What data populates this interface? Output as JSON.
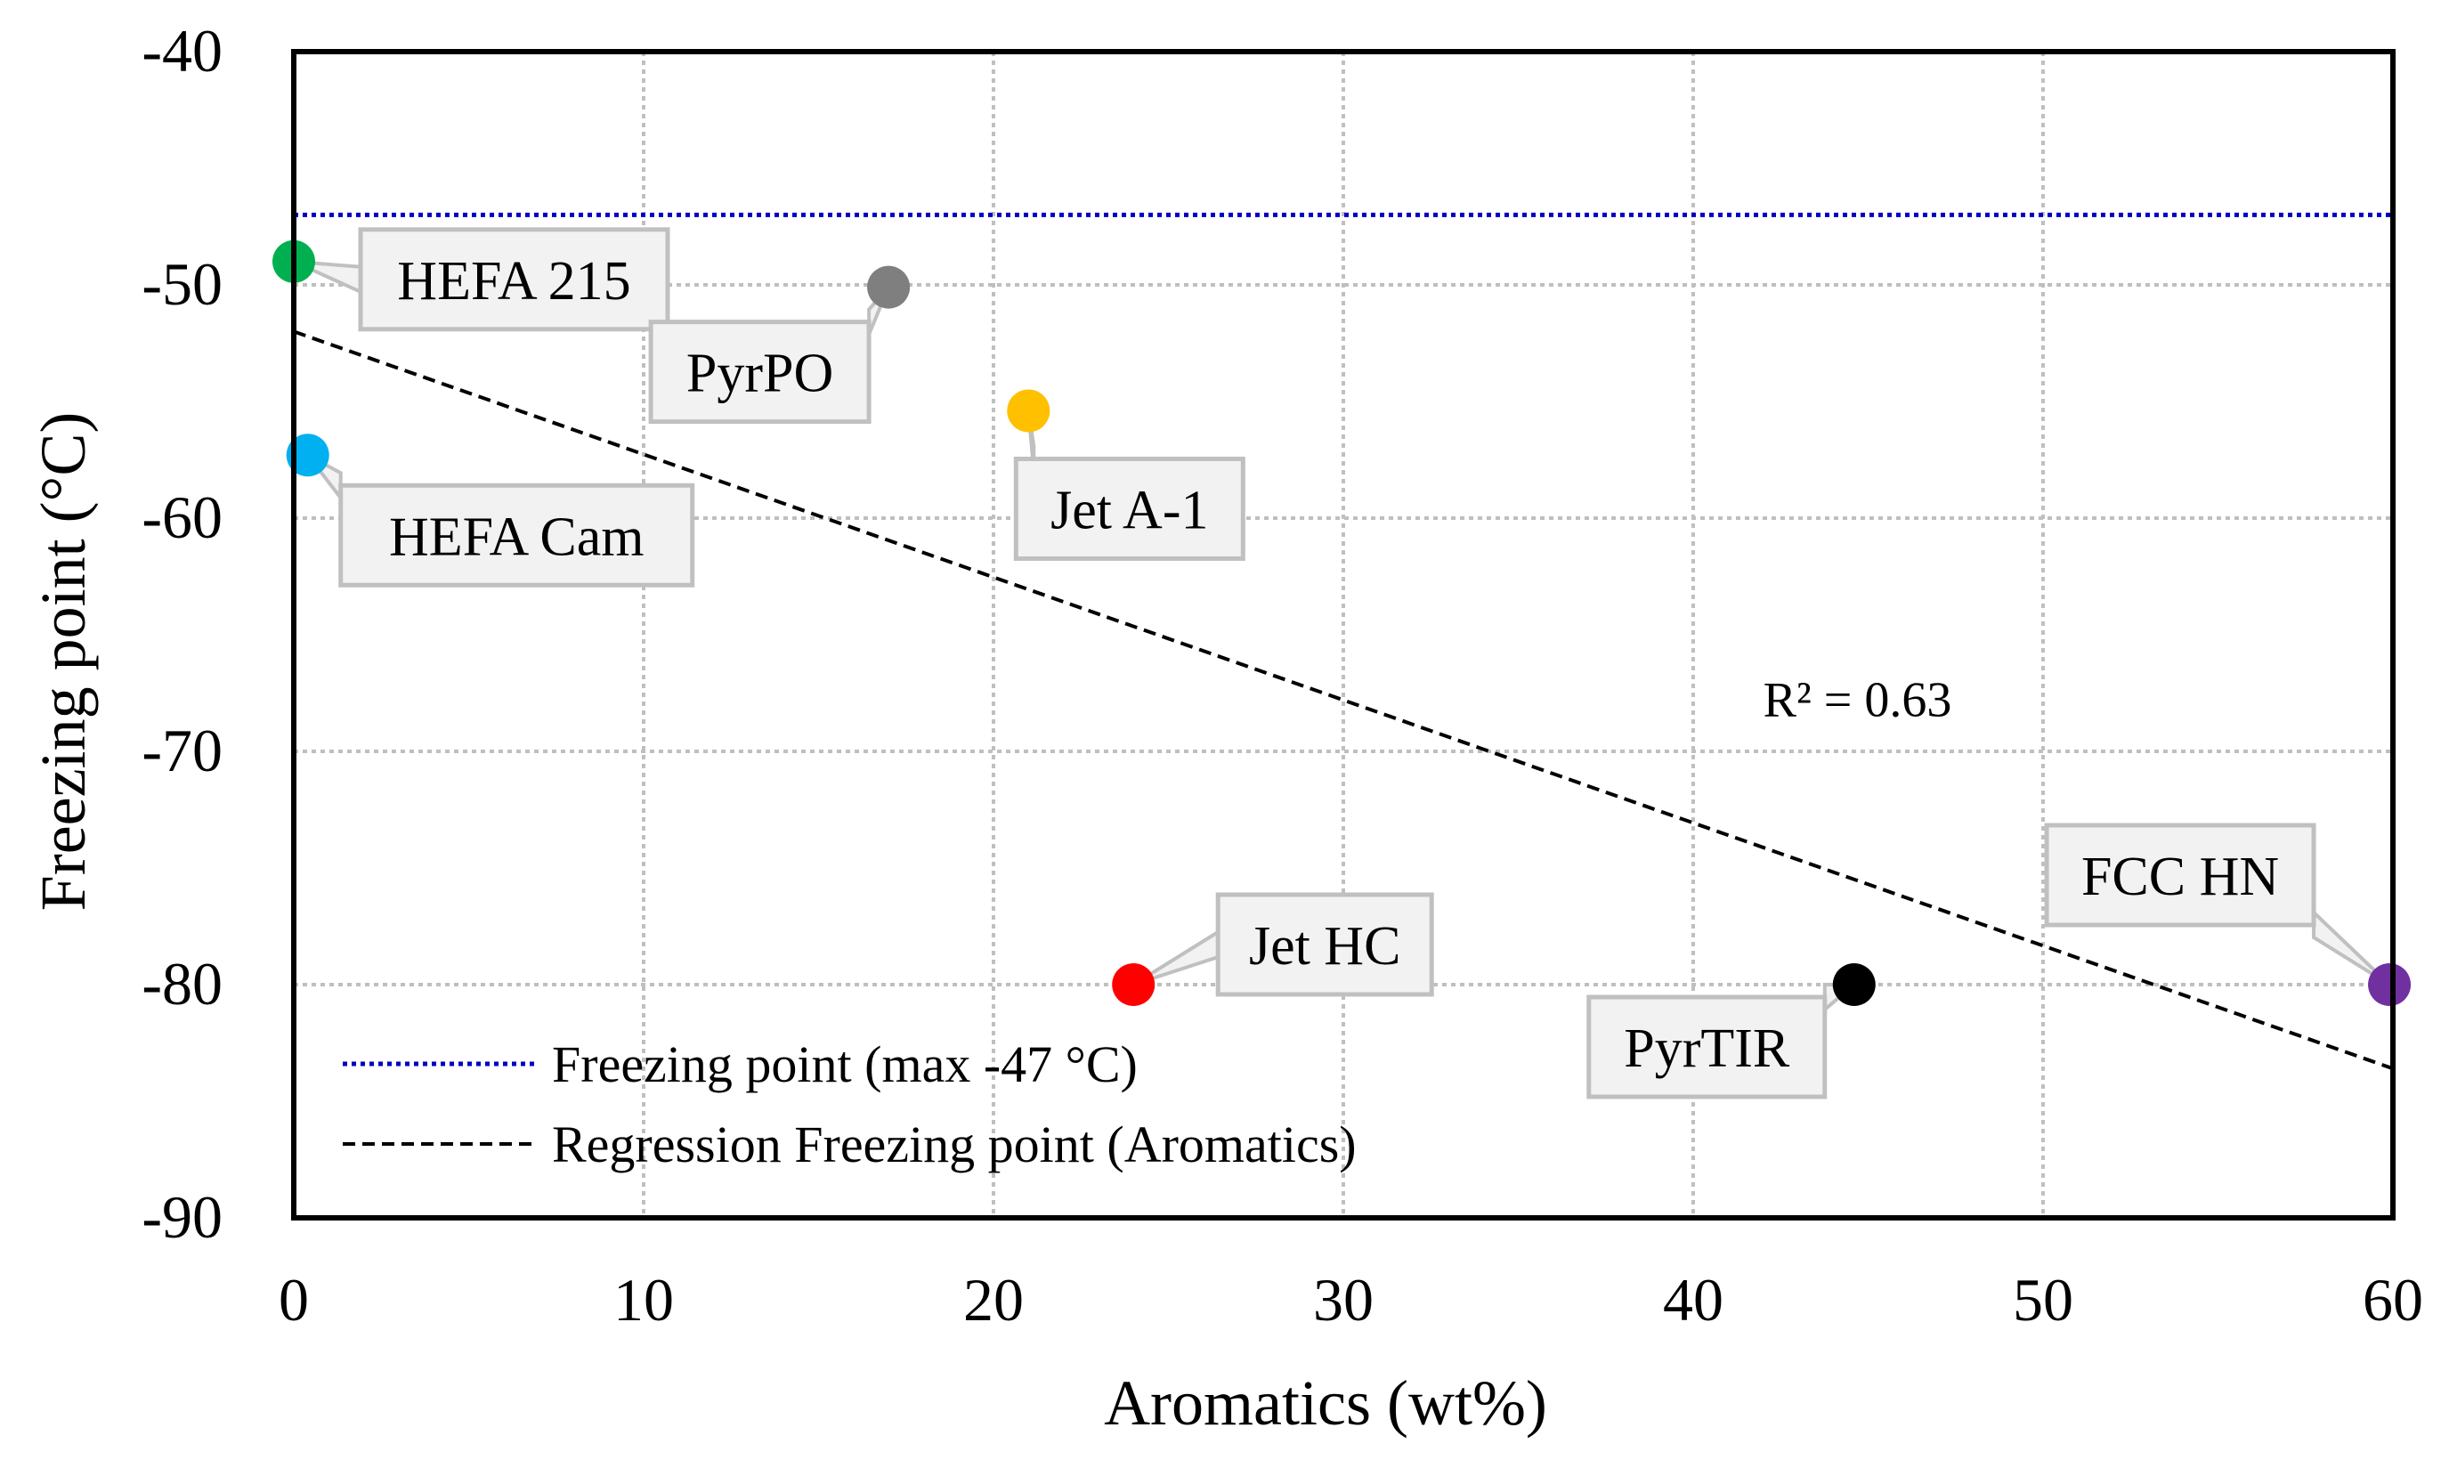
{
  "chart_data": {
    "type": "scatter",
    "title": "",
    "xlabel": "Aromatics  (wt%)",
    "ylabel": "Freezing point (°C)",
    "xlim": [
      0,
      60
    ],
    "ylim": [
      -90,
      -40
    ],
    "x_ticks": [
      0,
      10,
      20,
      30,
      40,
      50,
      60
    ],
    "y_ticks": [
      -40,
      -50,
      -60,
      -70,
      -80,
      -90
    ],
    "grid": true,
    "points": [
      {
        "label": "HEFA 215",
        "x": 0.0,
        "y": -49.0,
        "color": "#00b050"
      },
      {
        "label": "PyrPO",
        "x": 17.0,
        "y": -50.1,
        "color": "#7f7f7f"
      },
      {
        "label": "HEFA Cam",
        "x": 0.4,
        "y": -57.3,
        "color": "#00b0f0"
      },
      {
        "label": "Jet A-1",
        "x": 21.0,
        "y": -55.4,
        "color": "#ffc000"
      },
      {
        "label": "Jet HC",
        "x": 24.0,
        "y": -80.0,
        "color": "#ff0000"
      },
      {
        "label": "PyrTIR",
        "x": 44.6,
        "y": -80.0,
        "color": "#000000"
      },
      {
        "label": "FCC HN",
        "x": 59.9,
        "y": -80.0,
        "color": "#7030a0"
      }
    ],
    "reference_line": {
      "name": "Freezing point (max -47 °C)",
      "y": -47,
      "color": "#0000c0",
      "style": "dotted"
    },
    "regression": {
      "name": "Regression Freezing point (Aromatics)",
      "x_start": 0,
      "y_start": -52.0,
      "x_end": 60,
      "y_end": -83.6,
      "color": "#000000",
      "style": "dashed",
      "r2_label": "R² = 0.63",
      "r2_x": 42,
      "r2_y": -68.5
    },
    "legend": {
      "placement": "bottom-left"
    }
  }
}
